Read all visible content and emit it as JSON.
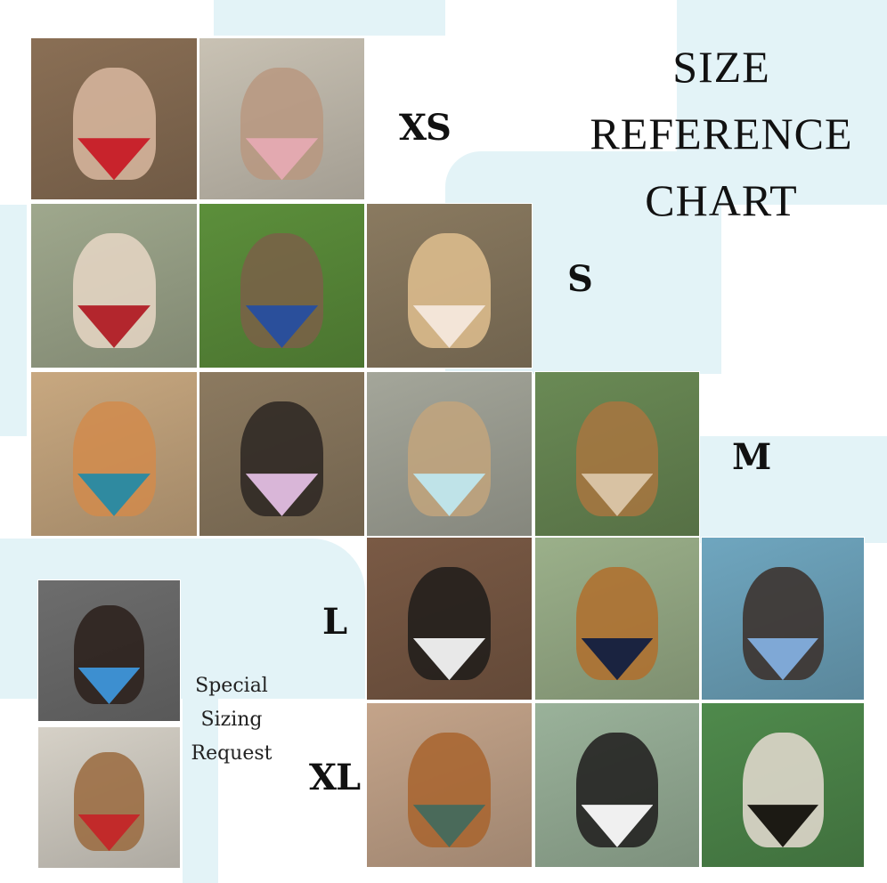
{
  "title": {
    "line1": "SIZE",
    "line2": "REFERENCE",
    "line3": "CHART"
  },
  "sizes": {
    "xs": "XS",
    "s": "S",
    "m": "M",
    "l": "L",
    "xl": "XL"
  },
  "special": {
    "line1": "Special",
    "line2": "Sizing",
    "line3": "Request"
  },
  "colors": {
    "background": "#ffffff",
    "accent_blob": "#e3f3f7",
    "text": "#111111"
  },
  "photos": [
    {
      "size": "XS",
      "subject": "cat",
      "bg": "#8a6f55",
      "pet": "#d9b9a0",
      "bandana": "#c8232c"
    },
    {
      "size": "XS",
      "subject": "two cats",
      "bg": "#c9c2b4",
      "pet": "#b89880",
      "bandana": "#e3a9b0"
    },
    {
      "size": "S",
      "subject": "dog",
      "bg": "#9fa88d",
      "pet": "#e8d7c6",
      "bandana": "#b3262d"
    },
    {
      "size": "S",
      "subject": "dog",
      "bg": "#5c8f3b",
      "pet": "#7a6048",
      "bandana": "#2a4f9b"
    },
    {
      "size": "S",
      "subject": "dog",
      "bg": "#8a7a60",
      "pet": "#e0c08f",
      "bandana": "#f3e5d8"
    },
    {
      "size": "M",
      "subject": "dog",
      "bg": "#c8a880",
      "pet": "#d18b4c",
      "bandana": "#2f8aa0"
    },
    {
      "size": "M",
      "subject": "dog",
      "bg": "#8c7a60",
      "pet": "#2b2622",
      "bandana": "#d9b6d8"
    },
    {
      "size": "M",
      "subject": "dog",
      "bg": "#a4a69a",
      "pet": "#c2a57c",
      "bandana": "#bfe3e8"
    },
    {
      "size": "M",
      "subject": "dog",
      "bg": "#6a8a55",
      "pet": "#a8763f",
      "bandana": "#d8c2a3"
    },
    {
      "size": "L",
      "subject": "dog",
      "bg": "#7a5a45",
      "pet": "#1f1c1a",
      "bandana": "#e8e8e8"
    },
    {
      "size": "L",
      "subject": "dog",
      "bg": "#9bb08a",
      "pet": "#b06f2d",
      "bandana": "#1a2340"
    },
    {
      "size": "L",
      "subject": "dog",
      "bg": "#6fa6bf",
      "pet": "#3b2e28",
      "bandana": "#7fa8d6"
    },
    {
      "size": "XL",
      "subject": "dog",
      "bg": "#c4a48a",
      "pet": "#a8642e",
      "bandana": "#4a6a5a"
    },
    {
      "size": "XL",
      "subject": "dog",
      "bg": "#9ab29a",
      "pet": "#1e1c1c",
      "bandana": "#f0f0f0"
    },
    {
      "size": "XL",
      "subject": "dog",
      "bg": "#4f8a4c",
      "pet": "#e6dcd2",
      "bandana": "#1c1a14"
    },
    {
      "size": "Special",
      "subject": "dog",
      "bg": "#6d6d6d",
      "pet": "#2a1f1a",
      "bandana": "#3d8fd0"
    },
    {
      "size": "Special",
      "subject": "dog",
      "bg": "#d6d1c7",
      "pet": "#9a6a3e",
      "bandana": "#c22a2a"
    }
  ]
}
